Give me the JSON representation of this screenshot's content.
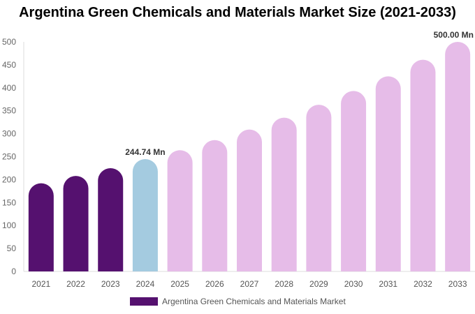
{
  "chart_data": {
    "type": "bar",
    "title": "Argentina Green Chemicals and Materials Market Size (2021-2033)",
    "categories": [
      "2021",
      "2022",
      "2023",
      "2024",
      "2025",
      "2026",
      "2027",
      "2028",
      "2029",
      "2030",
      "2031",
      "2032",
      "2033"
    ],
    "series": [
      {
        "name": "Argentina Green Chemicals and Materials Market",
        "values": [
          192,
          208,
          225,
          244.74,
          264,
          286,
          309,
          335,
          363,
          393,
          425,
          461,
          500
        ]
      }
    ],
    "bar_colors": [
      "#55116f",
      "#55116f",
      "#55116f",
      "#a4cbe0",
      "#e6bce8",
      "#e6bce8",
      "#e6bce8",
      "#e6bce8",
      "#e6bce8",
      "#e6bce8",
      "#e6bce8",
      "#e6bce8",
      "#e6bce8"
    ],
    "data_labels": [
      {
        "index": 3,
        "text": "244.74 Mn"
      },
      {
        "index": 12,
        "text": "500.00 Mn"
      }
    ],
    "ylim": [
      0,
      500
    ],
    "yticks": [
      0,
      50,
      100,
      150,
      200,
      250,
      300,
      350,
      400,
      450,
      500
    ],
    "grid": false,
    "legend": "bottom",
    "legend_color": "#55116f"
  }
}
